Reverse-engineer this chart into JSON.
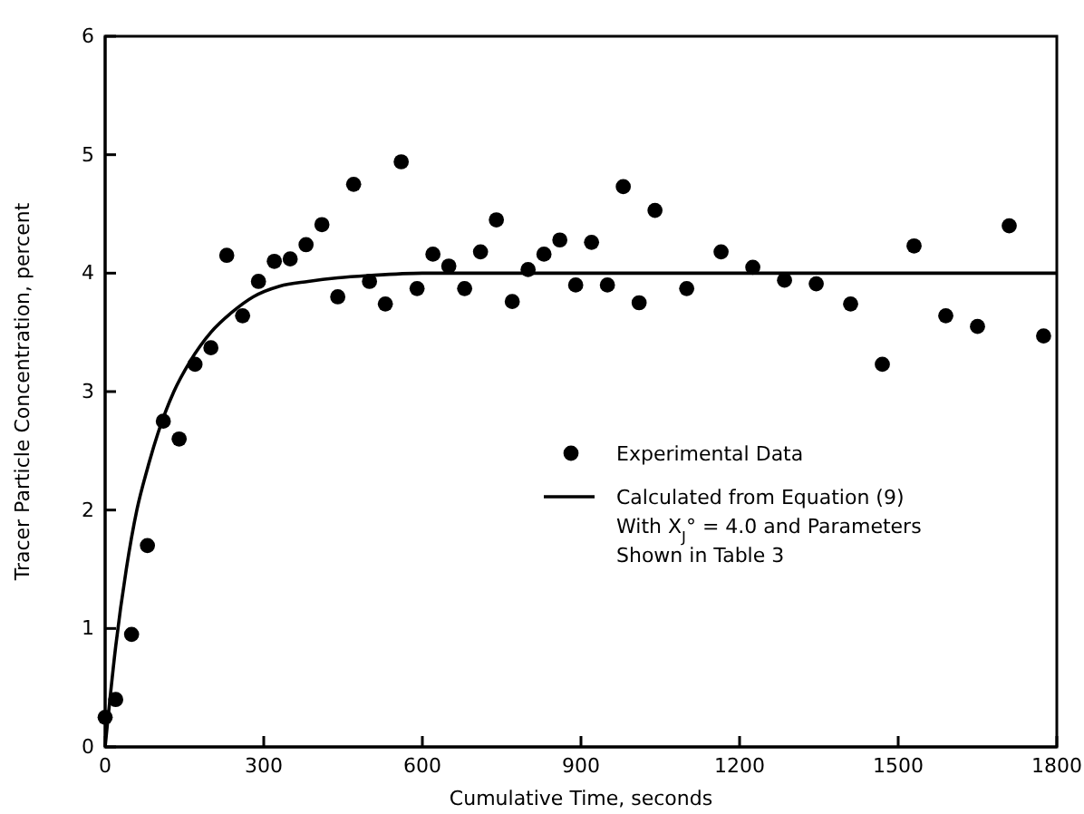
{
  "chart_data": {
    "type": "scatter",
    "xlabel": "Cumulative Time, seconds",
    "ylabel": "Tracer Particle Concentration, percent",
    "xlim": [
      0,
      1800
    ],
    "ylim": [
      0,
      6
    ],
    "xticks": [
      0,
      300,
      600,
      900,
      1200,
      1500,
      1800
    ],
    "yticks": [
      0,
      1,
      2,
      3,
      4,
      5,
      6
    ],
    "grid": false,
    "legend": "right",
    "series": [
      {
        "name": "Experimental Data",
        "marker": "circle",
        "color": "#000000",
        "x": [
          0,
          20,
          50,
          80,
          110,
          140,
          170,
          200,
          230,
          260,
          290,
          320,
          350,
          380,
          410,
          440,
          470,
          500,
          530,
          560,
          590,
          620,
          650,
          680,
          710,
          740,
          770,
          800,
          830,
          860,
          890,
          920,
          950,
          980,
          1010,
          1040,
          1100,
          1165,
          1225,
          1285,
          1345,
          1410,
          1470,
          1530,
          1590,
          1650,
          1710,
          1775
        ],
        "values": [
          0.25,
          0.4,
          0.95,
          1.7,
          2.75,
          2.6,
          3.23,
          3.37,
          4.15,
          3.64,
          3.93,
          4.1,
          4.12,
          4.24,
          4.41,
          3.8,
          4.75,
          3.93,
          3.74,
          4.94,
          3.87,
          4.16,
          4.06,
          3.87,
          4.18,
          4.45,
          3.76,
          4.03,
          4.16,
          4.28,
          3.9,
          4.26,
          3.9,
          4.73,
          3.75,
          4.53,
          3.87,
          4.18,
          4.05,
          3.94,
          3.91,
          3.74,
          3.23,
          4.23,
          3.64,
          3.55,
          4.4,
          3.47
        ]
      },
      {
        "name": "Calculated from Equation (9) With X$_{J}$° = 4.0 and Parameters Shown in Table 3",
        "type": "line",
        "color": "#000000",
        "marker": "none",
        "line_style": "solid",
        "x": [
          0,
          20,
          40,
          60,
          80,
          100,
          130,
          160,
          200,
          240,
          280,
          330,
          384,
          440,
          500,
          600,
          800,
          1200,
          1800
        ],
        "values": [
          0,
          0.85,
          1.5,
          2.0,
          2.35,
          2.65,
          3.0,
          3.25,
          3.5,
          3.67,
          3.8,
          3.89,
          3.93,
          3.96,
          3.98,
          4.0,
          4.0,
          4.0,
          4.0
        ]
      }
    ]
  }
}
